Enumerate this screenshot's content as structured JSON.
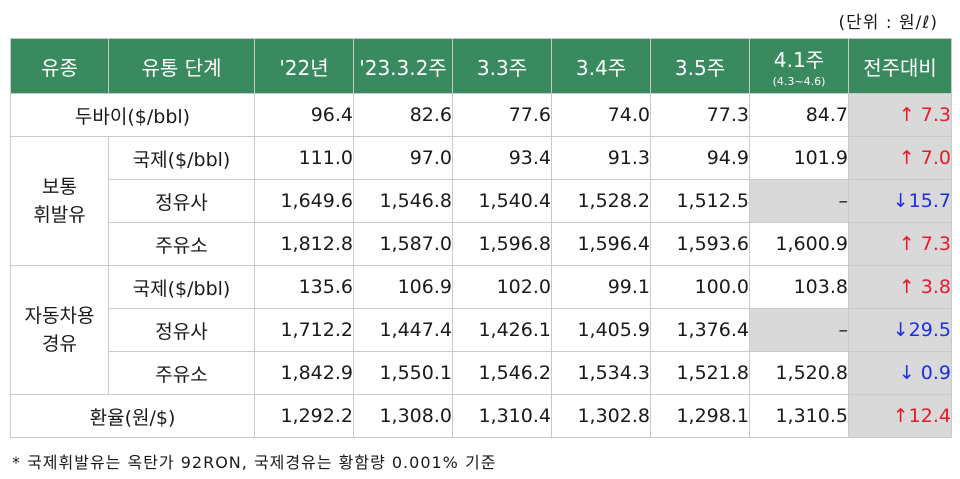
{
  "unit_label": "(단위 : 원/ℓ)",
  "headers": {
    "type": "유종",
    "stage": "유통 단계",
    "cols": [
      "'22년",
      "'23.3.2주",
      "3.3주",
      "3.4주",
      "3.5주",
      "4.1주"
    ],
    "col_sub": "(4.3~4.6)",
    "change": "전주대비"
  },
  "groups": {
    "gasoline": "보통\n휘발유",
    "diesel": "자동차용\n경유"
  },
  "rows": [
    {
      "label": "두바이($/bbl)",
      "values": [
        "96.4",
        "82.6",
        "77.6",
        "74.0",
        "77.3",
        "84.7"
      ],
      "change": "↑ 7.3",
      "dir": "up"
    },
    {
      "label": "국제($/bbl)",
      "values": [
        "111.0",
        "97.0",
        "93.4",
        "91.3",
        "94.9",
        "101.9"
      ],
      "change": "↑ 7.0",
      "dir": "up"
    },
    {
      "label": "정유사",
      "values": [
        "1,649.6",
        "1,546.8",
        "1,540.4",
        "1,528.2",
        "1,512.5",
        "–"
      ],
      "change": "↓15.7",
      "dir": "down"
    },
    {
      "label": "주유소",
      "values": [
        "1,812.8",
        "1,587.0",
        "1,596.8",
        "1,596.4",
        "1,593.6",
        "1,600.9"
      ],
      "change": "↑ 7.3",
      "dir": "up"
    },
    {
      "label": "국제($/bbl)",
      "values": [
        "135.6",
        "106.9",
        "102.0",
        "99.1",
        "100.0",
        "103.8"
      ],
      "change": "↑ 3.8",
      "dir": "up"
    },
    {
      "label": "정유사",
      "values": [
        "1,712.2",
        "1,447.4",
        "1,426.1",
        "1,405.9",
        "1,376.4",
        "–"
      ],
      "change": "↓29.5",
      "dir": "down"
    },
    {
      "label": "주유소",
      "values": [
        "1,842.9",
        "1,550.1",
        "1,546.2",
        "1,534.3",
        "1,521.8",
        "1,520.8"
      ],
      "change": "↓ 0.9",
      "dir": "down"
    },
    {
      "label": "환율(원/$)",
      "values": [
        "1,292.2",
        "1,308.0",
        "1,310.4",
        "1,302.8",
        "1,298.1",
        "1,310.5"
      ],
      "change": "↑12.4",
      "dir": "up"
    }
  ],
  "colors": {
    "header_bg": "#3a8a5f",
    "up": "#e8192c",
    "down": "#1b2fe0",
    "shade": "#d9d9d9"
  },
  "footnote": "* 국제휘발유는 옥탄가 92RON, 국제경유는 황함량 0.001% 기준"
}
